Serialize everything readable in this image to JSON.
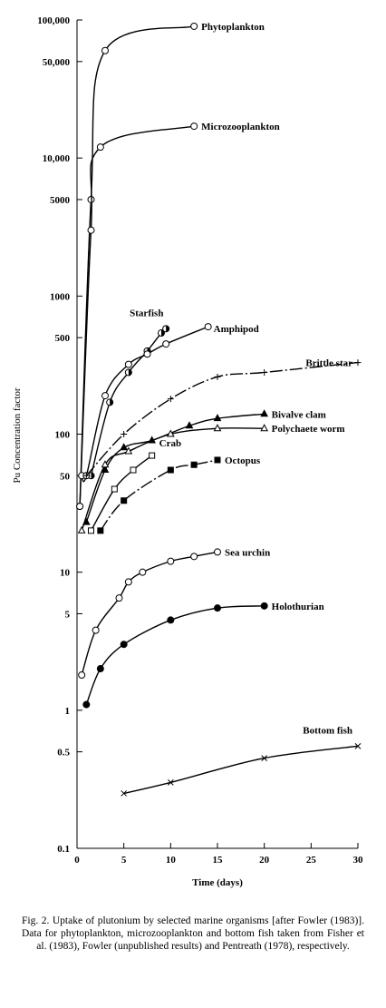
{
  "chart_data": {
    "type": "line",
    "log_y": true,
    "color": "#000000",
    "xlabel": "Time (days)",
    "ylabel": "Pu Concentration factor",
    "caption": "Fig. 2. Uptake of plutonium by selected marine organisms [after Fowler (1983)]. Data for phytoplankton, microzooplankton and bottom fish taken from Fisher et al. (1983), Fowler (unpublished results) and Pentreath (1978), respectively.",
    "xlim": [
      0,
      30
    ],
    "xticks": [
      0,
      5,
      10,
      15,
      20,
      25,
      30
    ],
    "ylim": [
      0.1,
      100000
    ],
    "yticks": [
      {
        "value": 100000,
        "label": "100,000"
      },
      {
        "value": 50000,
        "label": "50,000"
      },
      {
        "value": 10000,
        "label": "10,000"
      },
      5000,
      1000,
      500,
      100,
      50,
      10,
      5,
      1,
      0.5,
      0.1
    ],
    "series": [
      {
        "name": "Phytoplankton",
        "marker": "circle-open",
        "x": [
          0.3,
          1.5,
          3,
          12.5
        ],
        "values": [
          30,
          5000,
          60000,
          90000
        ]
      },
      {
        "name": "Microzooplankton",
        "marker": "circle-open",
        "x": [
          0.3,
          1.5,
          2.5,
          12.5
        ],
        "values": [
          30,
          3000,
          12000,
          17000
        ]
      },
      {
        "name": "Starfish",
        "marker": "circle-half",
        "x": [
          1.5,
          3.5,
          5.5,
          7.5,
          9,
          9.5
        ],
        "values": [
          50,
          170,
          280,
          400,
          540,
          580
        ]
      },
      {
        "name": "Amphipod",
        "marker": "circle-open",
        "x": [
          0.5,
          1,
          3,
          5.5,
          7.5,
          9.5,
          14
        ],
        "values": [
          50,
          50,
          190,
          320,
          380,
          450,
          600
        ]
      },
      {
        "name": "Brittle star",
        "marker": "plus",
        "dash": true,
        "x": [
          1,
          5,
          10,
          15,
          20,
          30
        ],
        "values": [
          50,
          100,
          180,
          260,
          280,
          330
        ]
      },
      {
        "name": "Bivalve clam",
        "marker": "triangle-filled",
        "x": [
          1,
          3,
          5,
          8,
          12,
          15,
          20
        ],
        "values": [
          23,
          55,
          80,
          90,
          115,
          130,
          140
        ]
      },
      {
        "name": "Polychaete worm",
        "marker": "triangle-open",
        "x": [
          0.5,
          3,
          5.5,
          10,
          15,
          20
        ],
        "values": [
          20,
          60,
          75,
          100,
          110,
          110
        ]
      },
      {
        "name": "Crab",
        "marker": "square-open",
        "x": [
          1.5,
          4,
          6,
          8
        ],
        "values": [
          20,
          40,
          55,
          70
        ]
      },
      {
        "name": "Octopus",
        "marker": "square-filled",
        "dash": true,
        "x": [
          2.5,
          5,
          10,
          12.5,
          15
        ],
        "values": [
          20,
          33,
          55,
          60,
          65
        ]
      },
      {
        "name": "Sea urchin",
        "marker": "circle-open",
        "x": [
          0.5,
          2,
          4.5,
          5.5,
          7,
          10,
          12.5,
          15
        ],
        "values": [
          1.8,
          3.8,
          6.5,
          8.5,
          10,
          12,
          13,
          14
        ]
      },
      {
        "name": "Holothurian",
        "marker": "circle-filled",
        "x": [
          1,
          2.5,
          5,
          10,
          15,
          20
        ],
        "values": [
          1.1,
          2,
          3,
          4.5,
          5.5,
          5.7
        ]
      },
      {
        "name": "Bottom fish",
        "marker": "x",
        "x": [
          5,
          10,
          20,
          30
        ],
        "values": [
          0.25,
          0.3,
          0.45,
          0.55
        ]
      }
    ]
  }
}
